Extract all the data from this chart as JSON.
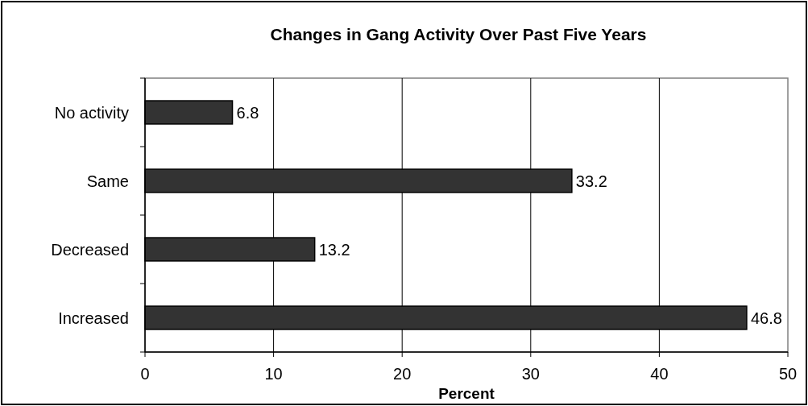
{
  "chart_data": {
    "type": "bar",
    "orientation": "horizontal",
    "title": "Changes in Gang Activity Over Past Five Years",
    "xlabel": "Percent",
    "categories": [
      "No activity",
      "Same",
      "Decreased",
      "Increased"
    ],
    "values": [
      6.8,
      33.2,
      13.2,
      46.8
    ],
    "color": "#333333",
    "xlim": [
      0,
      50
    ],
    "xticks": [
      0,
      10,
      20,
      30,
      40,
      50
    ],
    "grid": "x",
    "data_labels": true
  }
}
